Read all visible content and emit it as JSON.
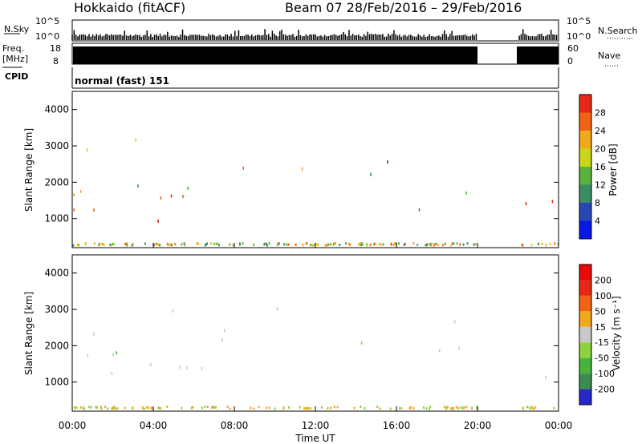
{
  "header": {
    "title": "Hokkaido (fitACF)",
    "beam_and_dates": "Beam 07   28/Feb/2016 – 29/Feb/2016"
  },
  "strips": {
    "nsky_label": "N.Sky",
    "nsearch_label": "N.Search",
    "freq_label_line1": "Freq.",
    "freq_label_line2": "[MHz]",
    "nave_label": "Nave",
    "cpid_label": "CPID",
    "cpid_text": "normal (fast) 151",
    "noise_ticks": [
      "10^5",
      "10^0"
    ],
    "freq_ticks": [
      "18",
      "8"
    ],
    "nave_ticks": [
      "60",
      "0"
    ]
  },
  "chart_data": [
    {
      "type": "heatmap",
      "panel": "power",
      "title": "",
      "xlabel": "",
      "ylabel": "Slant Range [km]",
      "ylim": [
        200,
        4500
      ],
      "yticks": [
        "1000",
        "2000",
        "3000",
        "4000"
      ],
      "colorbar": {
        "label": "Power [dB]",
        "ticks": [
          "4",
          "8",
          "12",
          "16",
          "20",
          "24",
          "28"
        ],
        "colors": [
          "#0a18e6",
          "#2846b4",
          "#3c8c64",
          "#58b23c",
          "#c8d61c",
          "#f0a81c",
          "#f06414",
          "#e62814"
        ]
      },
      "regions": [
        {
          "t_start": 0.0,
          "t_end": 9.5,
          "range_km": [
            900,
            1800
          ],
          "level": "high"
        },
        {
          "t_start": 0.0,
          "t_end": 9.5,
          "range_km": [
            1800,
            3200
          ],
          "level": "medium"
        },
        {
          "t_start": 10.0,
          "t_end": 13.0,
          "range_km": [
            2000,
            3200
          ],
          "level": "medium"
        },
        {
          "t_start": 13.5,
          "t_end": 20.0,
          "range_km": [
            1200,
            2800
          ],
          "level": "low"
        },
        {
          "t_start": 22.0,
          "t_end": 24.0,
          "range_km": [
            900,
            1800
          ],
          "level": "high"
        }
      ],
      "data_gap_hours": [
        20.0,
        22.0
      ]
    },
    {
      "type": "heatmap",
      "panel": "velocity",
      "title": "",
      "xlabel": "Time UT",
      "ylabel": "Slant Range [km]",
      "ylim": [
        200,
        4500
      ],
      "yticks": [
        "1000",
        "2000",
        "3000",
        "4000"
      ],
      "xticks": [
        "00:00",
        "04:00",
        "08:00",
        "12:00",
        "16:00",
        "20:00",
        "00:00"
      ],
      "colorbar": {
        "label": "Velocity [m s⁻¹]",
        "ticks": [
          "200",
          "100",
          "50",
          "15",
          "-15",
          "-50",
          "-100",
          "-200"
        ],
        "colors": [
          "#2828c8",
          "#3c8c50",
          "#46b43c",
          "#8cd23c",
          "#c8c8c8",
          "#f0a81c",
          "#f06414",
          "#e62814",
          "#e60a0a"
        ]
      },
      "data_gap_hours": [
        20.0,
        22.0
      ]
    }
  ]
}
